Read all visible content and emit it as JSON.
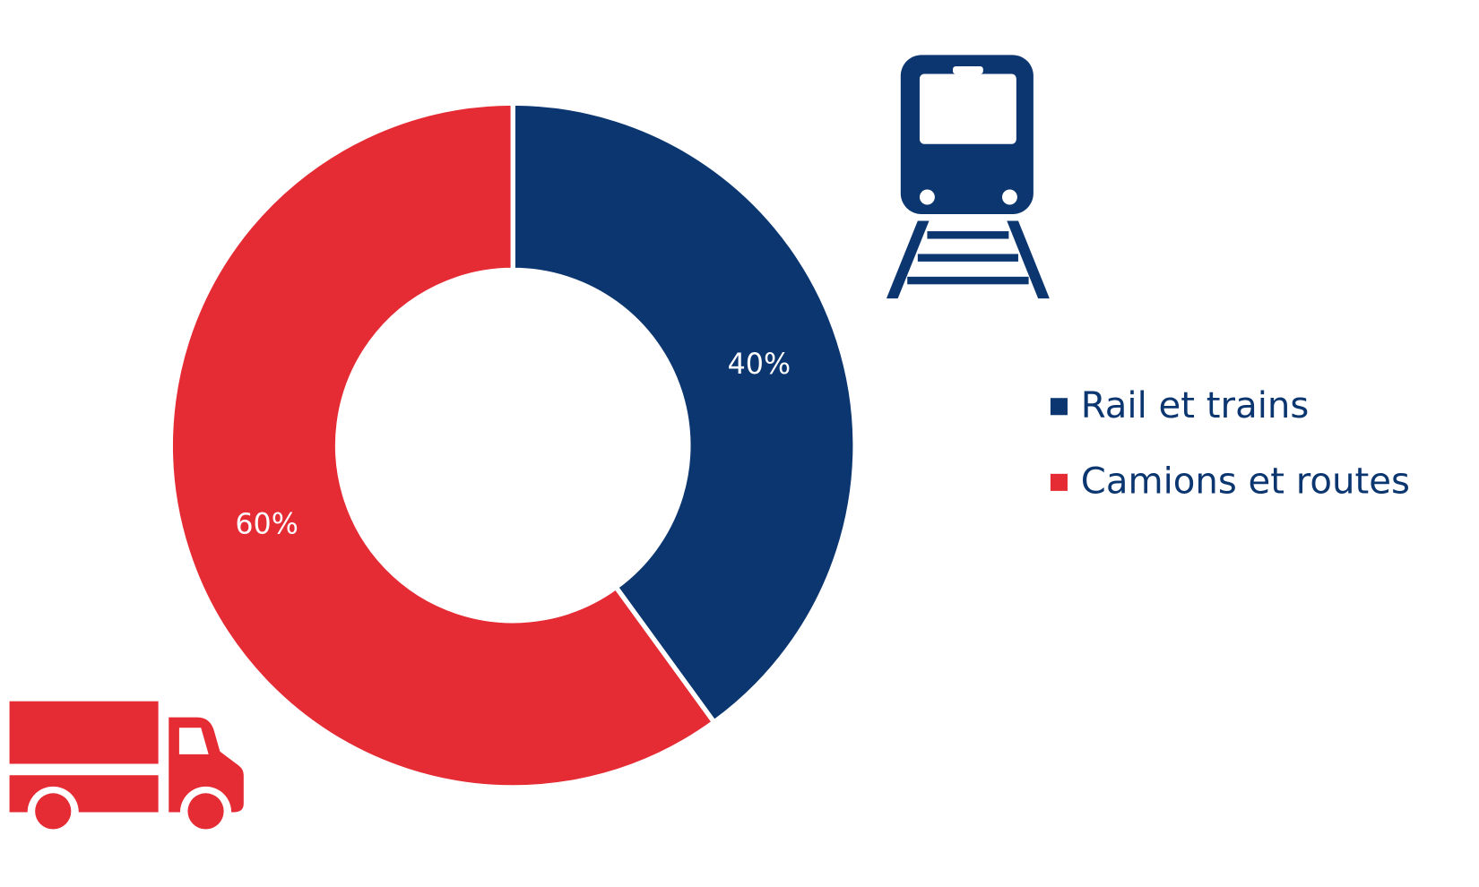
{
  "chart_data": {
    "type": "donut",
    "categories": [
      "Rail et trains",
      "Camions et routes"
    ],
    "values": [
      40,
      60
    ],
    "value_labels": [
      "40%",
      "60%"
    ],
    "colors": [
      "#0b3670",
      "#e52b33"
    ],
    "legend": "right"
  }
}
